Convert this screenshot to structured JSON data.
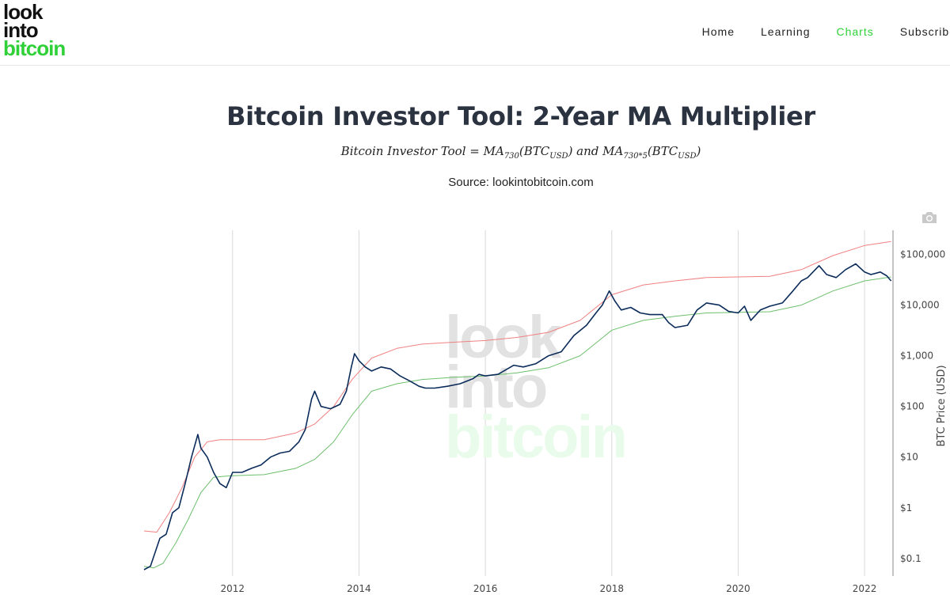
{
  "header": {
    "logo": {
      "line1": "look",
      "line2": "into",
      "line3": "bitcoin"
    },
    "nav": [
      {
        "label": "Home",
        "active": false
      },
      {
        "label": "Learning",
        "active": false
      },
      {
        "label": "Charts",
        "active": true
      },
      {
        "label": "Subscribe",
        "active": false
      }
    ]
  },
  "page": {
    "title": "Bitcoin Investor Tool: 2-Year MA Multiplier",
    "formula": {
      "p1": "Bitcoin Investor Tool = MA",
      "s1": "730",
      "p2": "(BTC",
      "s2": "USD",
      "p3": ") and MA",
      "s3": "730*5",
      "p4": "(BTC",
      "s4": "USD",
      "p5": ")"
    },
    "source": "Source: lookintobitcoin.com"
  },
  "watermark": {
    "line1": "look",
    "line2": "into",
    "line3": "bitcoin"
  },
  "colors": {
    "price": "#0b2c5a",
    "upper_ma": "#f08080",
    "lower_ma": "#6dbf6d",
    "accent_green": "#2fd038",
    "grid": "#d9d9d9"
  },
  "icons": {
    "camera": "camera-icon"
  },
  "chart_data": {
    "type": "line",
    "title": "",
    "xlabel": "",
    "ylabel": "BTC Price (USD)",
    "y_scale": "log",
    "xlim": [
      2010.6,
      2022.45
    ],
    "ylim": [
      0.045,
      300000
    ],
    "x_ticks": [
      2012,
      2014,
      2016,
      2018,
      2020,
      2022
    ],
    "x_tick_labels": [
      "2012",
      "2014",
      "2016",
      "2018",
      "2020",
      "2022"
    ],
    "y_ticks": [
      0.1,
      1,
      10,
      100,
      1000,
      10000,
      100000
    ],
    "y_tick_labels": [
      "$0.1",
      "$1",
      "$10",
      "$100",
      "$1,000",
      "$10,000",
      "$100,000"
    ],
    "grid": {
      "x": true,
      "y": false
    },
    "legend": "none",
    "series": [
      {
        "key": "price",
        "x": [
          2010.6,
          2010.7,
          2010.85,
          2010.95,
          2011.05,
          2011.15,
          2011.25,
          2011.35,
          2011.45,
          2011.5,
          2011.6,
          2011.7,
          2011.8,
          2011.9,
          2012.0,
          2012.15,
          2012.3,
          2012.45,
          2012.6,
          2012.75,
          2012.9,
          2013.05,
          2013.15,
          2013.25,
          2013.3,
          2013.4,
          2013.55,
          2013.7,
          2013.8,
          2013.88,
          2013.93,
          2014.0,
          2014.1,
          2014.2,
          2014.35,
          2014.5,
          2014.65,
          2014.8,
          2014.95,
          2015.05,
          2015.2,
          2015.4,
          2015.6,
          2015.8,
          2015.9,
          2016.0,
          2016.2,
          2016.45,
          2016.6,
          2016.8,
          2017.0,
          2017.2,
          2017.4,
          2017.6,
          2017.75,
          2017.85,
          2017.96,
          2018.05,
          2018.15,
          2018.3,
          2018.45,
          2018.6,
          2018.8,
          2018.9,
          2019.0,
          2019.2,
          2019.35,
          2019.5,
          2019.7,
          2019.85,
          2020.0,
          2020.1,
          2020.2,
          2020.35,
          2020.5,
          2020.7,
          2020.85,
          2021.0,
          2021.1,
          2021.28,
          2021.4,
          2021.55,
          2021.7,
          2021.86,
          2022.0,
          2022.1,
          2022.25,
          2022.35,
          2022.42
        ],
        "y": [
          0.06,
          0.07,
          0.25,
          0.3,
          0.8,
          1.0,
          3.0,
          10,
          28,
          15,
          10,
          5,
          3,
          2.5,
          5,
          5,
          6,
          7,
          10,
          12,
          13,
          20,
          35,
          140,
          200,
          100,
          90,
          110,
          200,
          600,
          1100,
          800,
          600,
          500,
          600,
          550,
          400,
          320,
          250,
          230,
          230,
          250,
          280,
          350,
          430,
          400,
          430,
          650,
          600,
          700,
          1000,
          1200,
          2500,
          4000,
          7000,
          10000,
          19000,
          12000,
          8000,
          9000,
          7000,
          6500,
          6500,
          4500,
          3600,
          4000,
          8000,
          11000,
          10000,
          7500,
          7000,
          9500,
          5000,
          8000,
          9500,
          11000,
          18000,
          30000,
          35000,
          60000,
          40000,
          35000,
          50000,
          65000,
          45000,
          40000,
          45000,
          38000,
          30000
        ]
      },
      {
        "key": "upper_ma",
        "x": [
          2010.6,
          2010.8,
          2011.0,
          2011.2,
          2011.4,
          2011.6,
          2011.8,
          2012.0,
          2012.5,
          2013.0,
          2013.3,
          2013.6,
          2013.9,
          2014.2,
          2014.6,
          2015.0,
          2015.5,
          2016.0,
          2016.5,
          2017.0,
          2017.5,
          2018.0,
          2018.5,
          2019.0,
          2019.5,
          2020.0,
          2020.5,
          2021.0,
          2021.5,
          2022.0,
          2022.42
        ],
        "y": [
          0.35,
          0.33,
          0.8,
          2.5,
          10,
          20,
          22,
          22,
          22,
          30,
          45,
          100,
          350,
          900,
          1400,
          1700,
          1850,
          2000,
          2300,
          2900,
          5000,
          16000,
          25000,
          30000,
          35000,
          36000,
          37000,
          50000,
          95000,
          150000,
          180000
        ]
      },
      {
        "key": "lower_ma",
        "x": [
          2010.6,
          2010.75,
          2010.9,
          2011.1,
          2011.3,
          2011.5,
          2011.7,
          2011.9,
          2012.0,
          2012.5,
          2013.0,
          2013.3,
          2013.6,
          2013.9,
          2014.2,
          2014.6,
          2015.0,
          2015.5,
          2016.0,
          2016.5,
          2017.0,
          2017.5,
          2018.0,
          2018.5,
          2019.0,
          2019.5,
          2020.0,
          2020.5,
          2021.0,
          2021.5,
          2022.0,
          2022.42
        ],
        "y": [
          0.07,
          0.065,
          0.08,
          0.2,
          0.6,
          2.0,
          4.0,
          4.2,
          4.3,
          4.5,
          6,
          9,
          20,
          70,
          200,
          280,
          340,
          375,
          400,
          460,
          580,
          1000,
          3200,
          5000,
          6000,
          7000,
          7200,
          7400,
          10000,
          19000,
          30000,
          36000
        ]
      }
    ]
  }
}
